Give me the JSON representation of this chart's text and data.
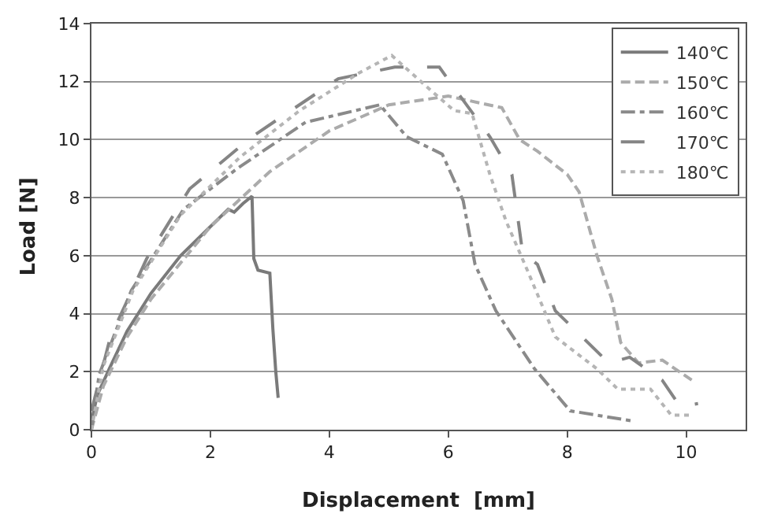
{
  "chart_data": {
    "type": "line",
    "xlabel": "Displacement  [mm]",
    "ylabel": "Load [N]",
    "xlim": [
      0,
      11
    ],
    "xticks": [
      0,
      2,
      4,
      6,
      8,
      10
    ],
    "ylim": [
      0,
      14
    ],
    "yticks": [
      0,
      2,
      4,
      6,
      8,
      10,
      12,
      14
    ],
    "grid": "y",
    "legend": "top right",
    "marker": "none",
    "series": [
      {
        "name": "140℃",
        "color": "#7a7a7a",
        "line_style": "solid",
        "x": [
          0,
          0.1,
          0.3,
          0.6,
          1,
          1.5,
          2,
          2.3,
          2.4,
          2.55,
          2.7,
          2.73,
          2.8,
          3.0,
          3.05,
          3.1,
          3.14
        ],
        "values": [
          0.3,
          1.2,
          2.1,
          3.4,
          4.7,
          6.0,
          7.0,
          7.6,
          7.5,
          7.8,
          8.05,
          5.9,
          5.5,
          5.4,
          3.5,
          2.0,
          1.1
        ]
      },
      {
        "name": "150℃",
        "color": "#ababab",
        "line_style": "dashed",
        "x": [
          0,
          0.2,
          0.6,
          1,
          2,
          3,
          4,
          5,
          6,
          6.9,
          7.2,
          7.5,
          8.0,
          8.2,
          8.5,
          8.75,
          8.9,
          9.2,
          9.6,
          10.1
        ],
        "values": [
          0,
          1.5,
          3.2,
          4.5,
          7.0,
          8.9,
          10.3,
          11.2,
          11.5,
          11.1,
          10.0,
          9.6,
          8.8,
          8.2,
          6.0,
          4.5,
          3.0,
          2.3,
          2.4,
          1.7
        ]
      },
      {
        "name": "160℃",
        "color": "#8a8a8a",
        "line_style": "dashdot",
        "x": [
          0,
          0.13,
          0.67,
          1.55,
          2.45,
          3.6,
          4.85,
          5.3,
          5.9,
          6.25,
          6.45,
          6.8,
          7.45,
          8.05,
          8.8,
          9.1
        ],
        "values": [
          0,
          1.9,
          4.8,
          7.6,
          9.0,
          10.6,
          11.2,
          10.1,
          9.5,
          7.9,
          5.7,
          4.1,
          2.1,
          0.65,
          0.4,
          0.3
        ]
      },
      {
        "name": "170℃",
        "color": "#858585",
        "line_style": "longdash",
        "x": [
          0,
          0.32,
          0.93,
          1.65,
          2.7,
          4.15,
          5.1,
          5.85,
          6.2,
          6.7,
          7.07,
          7.25,
          7.5,
          7.8,
          8.25,
          8.7,
          9.05,
          9.6,
          9.9,
          10.2
        ],
        "values": [
          0.65,
          3.2,
          5.9,
          8.3,
          10.1,
          12.1,
          12.5,
          12.5,
          11.5,
          10.1,
          8.8,
          6.1,
          5.7,
          4.1,
          3.2,
          2.3,
          2.5,
          1.7,
          0.8,
          0.9
        ]
      },
      {
        "name": "180℃",
        "color": "#b5b5b5",
        "line_style": "dotted",
        "x": [
          0,
          0.2,
          0.7,
          1.5,
          2.5,
          3.5,
          4.5,
          5.05,
          5.65,
          6.1,
          6.4,
          6.7,
          6.97,
          7.35,
          7.8,
          8.5,
          8.85,
          9.4,
          9.75,
          10.1
        ],
        "values": [
          0,
          2.2,
          4.8,
          7.4,
          9.4,
          11.0,
          12.3,
          12.9,
          11.8,
          11.0,
          10.9,
          8.8,
          7.2,
          5.4,
          3.2,
          2.1,
          1.4,
          1.4,
          0.5,
          0.5
        ]
      }
    ]
  }
}
